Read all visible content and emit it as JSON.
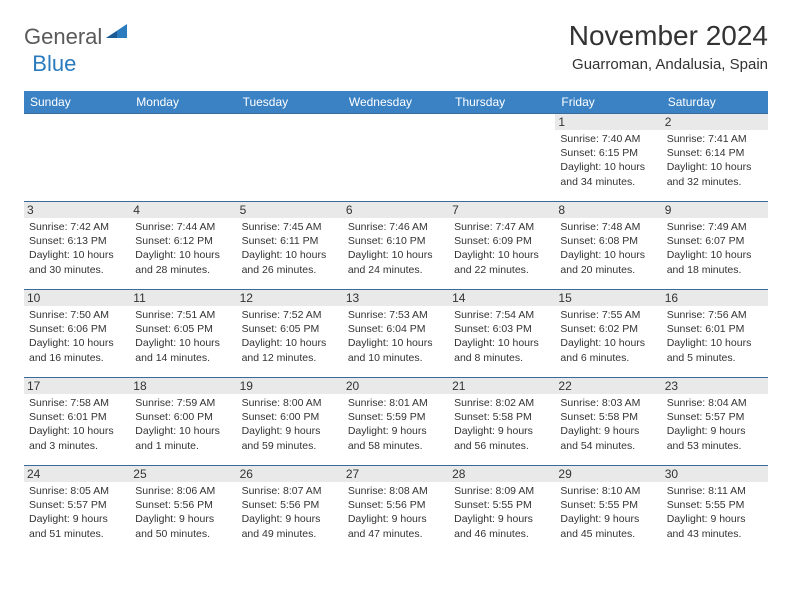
{
  "logo": {
    "general": "General",
    "blue": "Blue"
  },
  "title": "November 2024",
  "location": "Guarroman, Andalusia, Spain",
  "colors": {
    "header_bg": "#3a82c4",
    "header_text": "#ffffff",
    "row_border": "#3a6a9a",
    "daynum_bg": "#e9e9e9",
    "text": "#333333",
    "logo_gray": "#5a5a5a",
    "logo_blue": "#2b7bbf"
  },
  "day_labels": [
    "Sunday",
    "Monday",
    "Tuesday",
    "Wednesday",
    "Thursday",
    "Friday",
    "Saturday"
  ],
  "weeks": [
    [
      null,
      null,
      null,
      null,
      null,
      {
        "n": "1",
        "sunrise": "7:40 AM",
        "sunset": "6:15 PM",
        "daylight": "10 hours and 34 minutes."
      },
      {
        "n": "2",
        "sunrise": "7:41 AM",
        "sunset": "6:14 PM",
        "daylight": "10 hours and 32 minutes."
      }
    ],
    [
      {
        "n": "3",
        "sunrise": "7:42 AM",
        "sunset": "6:13 PM",
        "daylight": "10 hours and 30 minutes."
      },
      {
        "n": "4",
        "sunrise": "7:44 AM",
        "sunset": "6:12 PM",
        "daylight": "10 hours and 28 minutes."
      },
      {
        "n": "5",
        "sunrise": "7:45 AM",
        "sunset": "6:11 PM",
        "daylight": "10 hours and 26 minutes."
      },
      {
        "n": "6",
        "sunrise": "7:46 AM",
        "sunset": "6:10 PM",
        "daylight": "10 hours and 24 minutes."
      },
      {
        "n": "7",
        "sunrise": "7:47 AM",
        "sunset": "6:09 PM",
        "daylight": "10 hours and 22 minutes."
      },
      {
        "n": "8",
        "sunrise": "7:48 AM",
        "sunset": "6:08 PM",
        "daylight": "10 hours and 20 minutes."
      },
      {
        "n": "9",
        "sunrise": "7:49 AM",
        "sunset": "6:07 PM",
        "daylight": "10 hours and 18 minutes."
      }
    ],
    [
      {
        "n": "10",
        "sunrise": "7:50 AM",
        "sunset": "6:06 PM",
        "daylight": "10 hours and 16 minutes."
      },
      {
        "n": "11",
        "sunrise": "7:51 AM",
        "sunset": "6:05 PM",
        "daylight": "10 hours and 14 minutes."
      },
      {
        "n": "12",
        "sunrise": "7:52 AM",
        "sunset": "6:05 PM",
        "daylight": "10 hours and 12 minutes."
      },
      {
        "n": "13",
        "sunrise": "7:53 AM",
        "sunset": "6:04 PM",
        "daylight": "10 hours and 10 minutes."
      },
      {
        "n": "14",
        "sunrise": "7:54 AM",
        "sunset": "6:03 PM",
        "daylight": "10 hours and 8 minutes."
      },
      {
        "n": "15",
        "sunrise": "7:55 AM",
        "sunset": "6:02 PM",
        "daylight": "10 hours and 6 minutes."
      },
      {
        "n": "16",
        "sunrise": "7:56 AM",
        "sunset": "6:01 PM",
        "daylight": "10 hours and 5 minutes."
      }
    ],
    [
      {
        "n": "17",
        "sunrise": "7:58 AM",
        "sunset": "6:01 PM",
        "daylight": "10 hours and 3 minutes."
      },
      {
        "n": "18",
        "sunrise": "7:59 AM",
        "sunset": "6:00 PM",
        "daylight": "10 hours and 1 minute."
      },
      {
        "n": "19",
        "sunrise": "8:00 AM",
        "sunset": "6:00 PM",
        "daylight": "9 hours and 59 minutes."
      },
      {
        "n": "20",
        "sunrise": "8:01 AM",
        "sunset": "5:59 PM",
        "daylight": "9 hours and 58 minutes."
      },
      {
        "n": "21",
        "sunrise": "8:02 AM",
        "sunset": "5:58 PM",
        "daylight": "9 hours and 56 minutes."
      },
      {
        "n": "22",
        "sunrise": "8:03 AM",
        "sunset": "5:58 PM",
        "daylight": "9 hours and 54 minutes."
      },
      {
        "n": "23",
        "sunrise": "8:04 AM",
        "sunset": "5:57 PM",
        "daylight": "9 hours and 53 minutes."
      }
    ],
    [
      {
        "n": "24",
        "sunrise": "8:05 AM",
        "sunset": "5:57 PM",
        "daylight": "9 hours and 51 minutes."
      },
      {
        "n": "25",
        "sunrise": "8:06 AM",
        "sunset": "5:56 PM",
        "daylight": "9 hours and 50 minutes."
      },
      {
        "n": "26",
        "sunrise": "8:07 AM",
        "sunset": "5:56 PM",
        "daylight": "9 hours and 49 minutes."
      },
      {
        "n": "27",
        "sunrise": "8:08 AM",
        "sunset": "5:56 PM",
        "daylight": "9 hours and 47 minutes."
      },
      {
        "n": "28",
        "sunrise": "8:09 AM",
        "sunset": "5:55 PM",
        "daylight": "9 hours and 46 minutes."
      },
      {
        "n": "29",
        "sunrise": "8:10 AM",
        "sunset": "5:55 PM",
        "daylight": "9 hours and 45 minutes."
      },
      {
        "n": "30",
        "sunrise": "8:11 AM",
        "sunset": "5:55 PM",
        "daylight": "9 hours and 43 minutes."
      }
    ]
  ],
  "labels": {
    "sunrise": "Sunrise:",
    "sunset": "Sunset:",
    "daylight": "Daylight:"
  }
}
